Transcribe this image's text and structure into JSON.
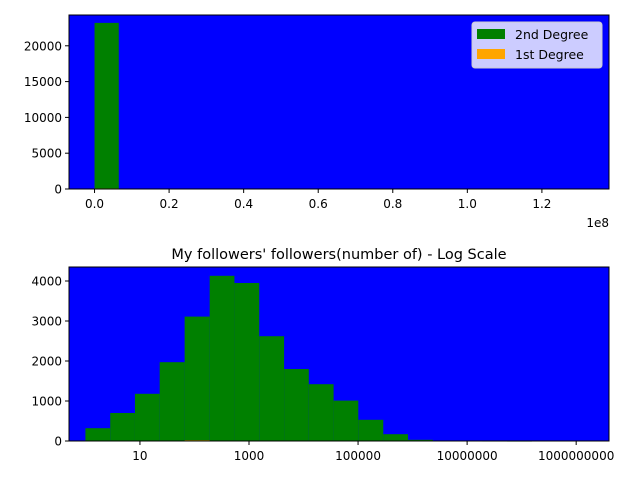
{
  "colors": {
    "axes_background": "#0000ff",
    "second_degree": "#008000",
    "first_degree": "#ffa500",
    "legend_background": "#ccccff"
  },
  "chart_data": [
    {
      "type": "bar",
      "title": "",
      "xlabel": "",
      "ylabel": "",
      "x_scale_label": "1e8",
      "xlim": [
        -0.0685,
        1.38
      ],
      "ylim": [
        0,
        24300
      ],
      "x_ticks": [
        0.0,
        0.2,
        0.4,
        0.6,
        0.8,
        1.0,
        1.2
      ],
      "x_tick_labels": [
        "0.0",
        "0.2",
        "0.4",
        "0.6",
        "0.8",
        "1.0",
        "1.2"
      ],
      "y_ticks": [
        0,
        5000,
        10000,
        15000,
        20000
      ],
      "y_tick_labels": [
        "0",
        "5000",
        "10000",
        "15000",
        "20000"
      ],
      "legend": {
        "placement": "top-right",
        "entries": [
          "2nd Degree",
          "1st Degree"
        ]
      },
      "series": [
        {
          "name": "2nd Degree",
          "bins": [
            [
              0.0,
              0.065,
              23200
            ]
          ]
        },
        {
          "name": "1st Degree",
          "bins": [
            [
              0.0,
              0.065,
              80
            ]
          ]
        }
      ],
      "grid": false
    },
    {
      "type": "bar",
      "title": "My followers' followers(number of) - Log Scale",
      "xlabel": "",
      "ylabel": "",
      "x_scale": "log",
      "xlim": [
        0.5,
        4000000000.0
      ],
      "ylim": [
        0,
        4350
      ],
      "x_ticks": [
        10,
        1000,
        100000,
        10000000,
        1000000000
      ],
      "x_tick_labels": [
        "10",
        "1000",
        "100000",
        "10000000",
        "1000000000"
      ],
      "y_ticks": [
        0,
        1000,
        2000,
        3000,
        4000
      ],
      "y_tick_labels": [
        "0",
        "1000",
        "2000",
        "3000",
        "4000"
      ],
      "bin_edges": [
        1,
        2.85,
        8.1,
        23,
        66,
        190,
        540,
        1540,
        4400,
        12500,
        35600,
        101000,
        290000,
        825000,
        2350000,
        6700000,
        19000000,
        54000000,
        154000000
      ],
      "series": [
        {
          "name": "2nd Degree",
          "values": [
            320,
            700,
            1180,
            1970,
            3110,
            4130,
            3950,
            2620,
            1800,
            1420,
            1010,
            530,
            170,
            30,
            8,
            4,
            2,
            1
          ]
        },
        {
          "name": "1st Degree",
          "values": [
            0,
            0,
            0,
            0,
            20,
            10,
            0,
            0,
            0,
            0,
            0,
            0,
            0,
            0,
            0,
            0,
            0,
            0
          ]
        }
      ],
      "grid": false
    }
  ]
}
